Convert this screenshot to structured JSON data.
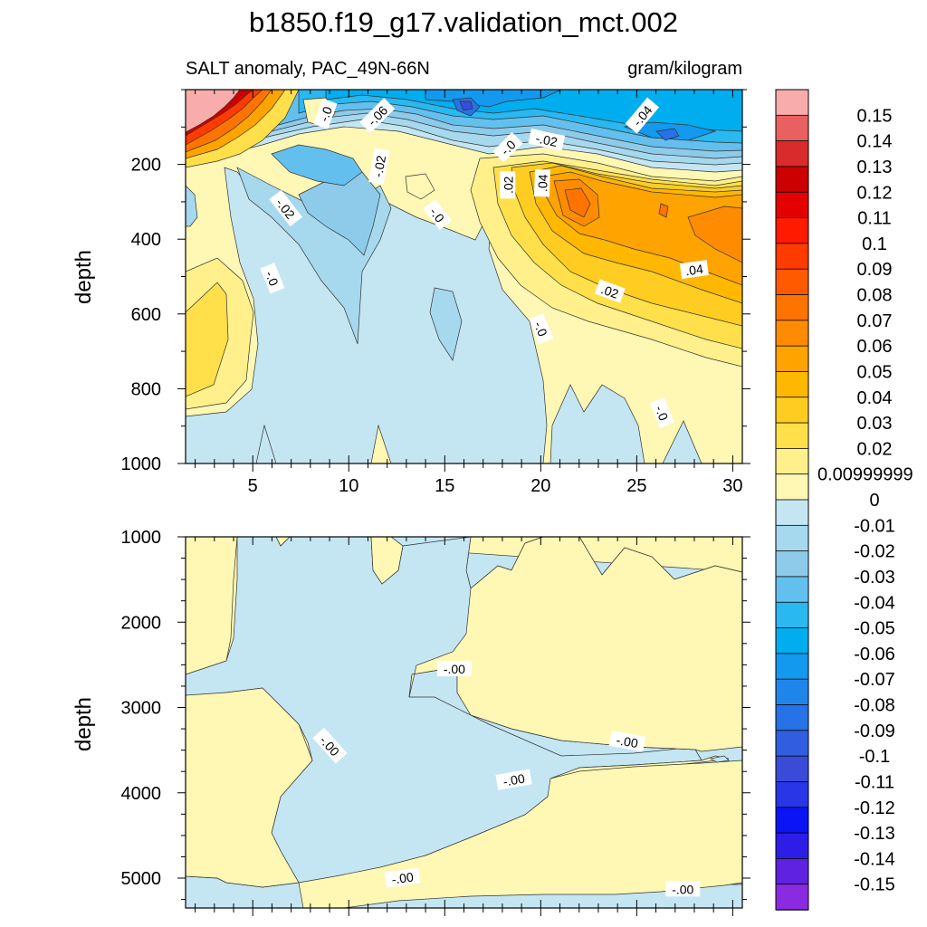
{
  "title": "b1850.f19_g17.validation_mct.002",
  "chart_data": {
    "type": "heatmap",
    "variable_label": "SALT anomaly, PAC_49N-66N",
    "units": "gram/kilogram",
    "colorbar": {
      "levels": [
        "0.15",
        "0.14",
        "0.13",
        "0.12",
        "0.11",
        "0.1",
        "0.09",
        "0.08",
        "0.07",
        "0.06",
        "0.05",
        "0.04",
        "0.03",
        "0.02",
        "0.00999999",
        "0",
        "-0.01",
        "-0.02",
        "-0.03",
        "-0.04",
        "-0.05",
        "-0.06",
        "-0.07",
        "-0.08",
        "-0.09",
        "-0.1",
        "-0.11",
        "-0.12",
        "-0.13",
        "-0.14",
        "-0.15"
      ],
      "colors": [
        "#f8acac",
        "#e96060",
        "#d92b2b",
        "#cc0000",
        "#e50000",
        "#ff1a00",
        "#ff3b00",
        "#ff5a00",
        "#ff7400",
        "#ff8c00",
        "#ffa300",
        "#ffb700",
        "#ffcc22",
        "#ffe04a",
        "#fff08c",
        "#fff7b4",
        "#c4e6f3",
        "#a6d8ee",
        "#8ecbea",
        "#63c0ee",
        "#29b8f0",
        "#00aef0",
        "#1399ee",
        "#1e86ea",
        "#2772e6",
        "#315ee0",
        "#3a4bd8",
        "#2936e8",
        "#0a14f5",
        "#2e1de6",
        "#5e22e0",
        "#8a2be2"
      ]
    },
    "panels": [
      {
        "id": "upper",
        "xlim": [
          1.5,
          30.5
        ],
        "ylim": [
          0,
          1000
        ],
        "y_reversed": true,
        "ylabel": "depth",
        "xticks": [
          5,
          10,
          15,
          20,
          25,
          30
        ],
        "yticks": [
          200,
          400,
          600,
          800,
          1000
        ],
        "contour_labels": [
          {
            "text": "-.0",
            "x": 8.8,
            "y": 65,
            "angle": -70
          },
          {
            "text": "-.06",
            "x": 11.5,
            "y": 70,
            "angle": -45
          },
          {
            "text": "-.04",
            "x": 25.3,
            "y": 70,
            "angle": -50
          },
          {
            "text": "-.0",
            "x": 18.3,
            "y": 155,
            "angle": -45
          },
          {
            "text": "-.02",
            "x": 20.3,
            "y": 135,
            "angle": 12
          },
          {
            "text": "-.02",
            "x": 11.6,
            "y": 205,
            "angle": -80
          },
          {
            "text": ".02",
            "x": 18.3,
            "y": 255,
            "angle": -90
          },
          {
            "text": ".04",
            "x": 20.1,
            "y": 250,
            "angle": -88
          },
          {
            "text": "-.02",
            "x": 6.7,
            "y": 318,
            "angle": 52
          },
          {
            "text": "-.0",
            "x": 14.6,
            "y": 335,
            "angle": 52
          },
          {
            "text": "-.0",
            "x": 6.0,
            "y": 505,
            "angle": 68
          },
          {
            "text": ".04",
            "x": 28.0,
            "y": 482,
            "angle": -8
          },
          {
            "text": ".02",
            "x": 23.6,
            "y": 540,
            "angle": 20
          },
          {
            "text": "-.0",
            "x": 20.0,
            "y": 640,
            "angle": 68
          },
          {
            "text": "-.0",
            "x": 26.3,
            "y": 865,
            "angle": 68
          }
        ]
      },
      {
        "id": "lower",
        "xlim": [
          1.5,
          30.5
        ],
        "ylim": [
          1000,
          5350
        ],
        "y_reversed": true,
        "ylabel": "depth",
        "xticks": [
          5,
          10,
          15,
          20,
          25,
          30
        ],
        "yticks": [
          1000,
          2000,
          3000,
          4000,
          5000
        ],
        "contour_labels": [
          {
            "text": "-.00",
            "x": 9.0,
            "y": 3450,
            "angle": 48
          },
          {
            "text": "-.00",
            "x": 15.5,
            "y": 2550,
            "angle": 0
          },
          {
            "text": "-.00",
            "x": 24.5,
            "y": 3400,
            "angle": 10
          },
          {
            "text": "-.00",
            "x": 18.6,
            "y": 3850,
            "angle": -10
          },
          {
            "text": "-.00",
            "x": 12.8,
            "y": 5000,
            "angle": -8
          },
          {
            "text": "-.00",
            "x": 27.4,
            "y": 5130,
            "angle": 0
          }
        ]
      }
    ]
  }
}
